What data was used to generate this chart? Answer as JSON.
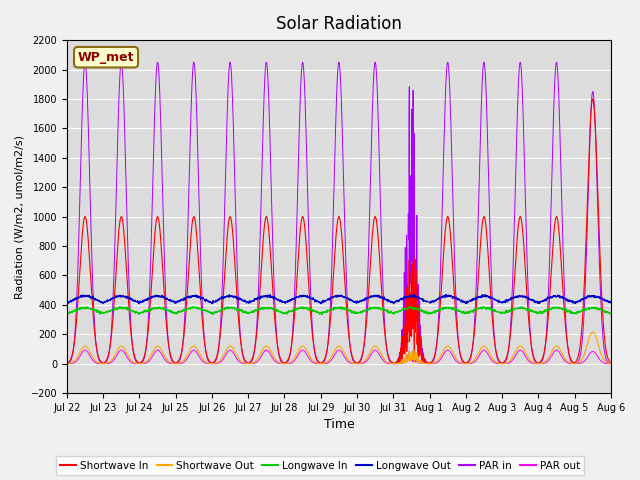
{
  "title": "Solar Radiation",
  "ylabel": "Radiation (W/m2, umol/m2/s)",
  "xlabel": "Time",
  "ylim": [
    -200,
    2200
  ],
  "yticks": [
    -200,
    0,
    200,
    400,
    600,
    800,
    1000,
    1200,
    1400,
    1600,
    1800,
    2000,
    2200
  ],
  "xtick_labels": [
    "Jul 22",
    "Jul 23",
    "Jul 24",
    "Jul 25",
    "Jul 26",
    "Jul 27",
    "Jul 28",
    "Jul 29",
    "Jul 30",
    "Jul 31",
    "Aug 1",
    "Aug 2",
    "Aug 3",
    "Aug 4",
    "Aug 5",
    "Aug 6"
  ],
  "station_label": "WP_met",
  "colors": {
    "shortwave_in": "#ff0000",
    "shortwave_out": "#ffa500",
    "longwave_in": "#00cc00",
    "longwave_out": "#0000cc",
    "par_in": "#aa00ff",
    "par_out": "#ff00ff"
  },
  "legend_entries": [
    "Shortwave In",
    "Shortwave Out",
    "Longwave In",
    "Longwave Out",
    "PAR in",
    "PAR out"
  ],
  "background_color": "#dcdcdc",
  "n_days": 15
}
